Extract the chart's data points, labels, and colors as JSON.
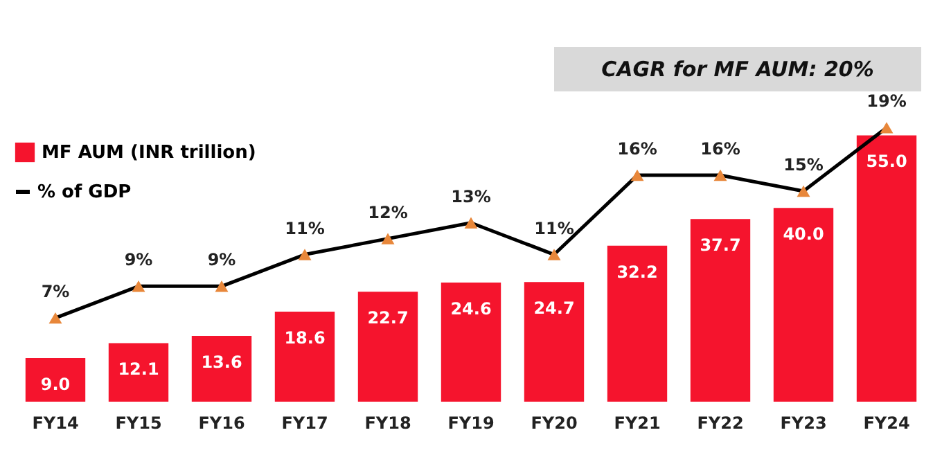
{
  "chart_data": {
    "type": "bar",
    "categories": [
      "FY14",
      "FY15",
      "FY16",
      "FY17",
      "FY18",
      "FY19",
      "FY20",
      "FY21",
      "FY22",
      "FY23",
      "FY24"
    ],
    "series": [
      {
        "name": "MF AUM (INR trillion)",
        "color": "#f5142d",
        "values": [
          9.0,
          12.1,
          13.6,
          18.6,
          22.7,
          24.6,
          24.7,
          32.2,
          37.7,
          40.0,
          55.0
        ],
        "value_labels": [
          "9.0",
          "12.1",
          "13.6",
          "18.6",
          "22.7",
          "24.6",
          "24.7",
          "32.2",
          "37.7",
          "40.0",
          "55.0"
        ]
      },
      {
        "name": "% of GDP",
        "type": "line",
        "axis": "y2",
        "color": "#000000",
        "marker": "triangle",
        "values": [
          7,
          9,
          9,
          11,
          12,
          13,
          11,
          16,
          16,
          15,
          19
        ],
        "value_labels": [
          "7%",
          "9%",
          "9%",
          "11%",
          "12%",
          "13%",
          "11%",
          "16%",
          "16%",
          "15%",
          "19%"
        ]
      }
    ],
    "annotations": [
      "CAGR for MF AUM: 20%"
    ],
    "legend": "top left",
    "tick_labels": "x",
    "grid": false
  }
}
